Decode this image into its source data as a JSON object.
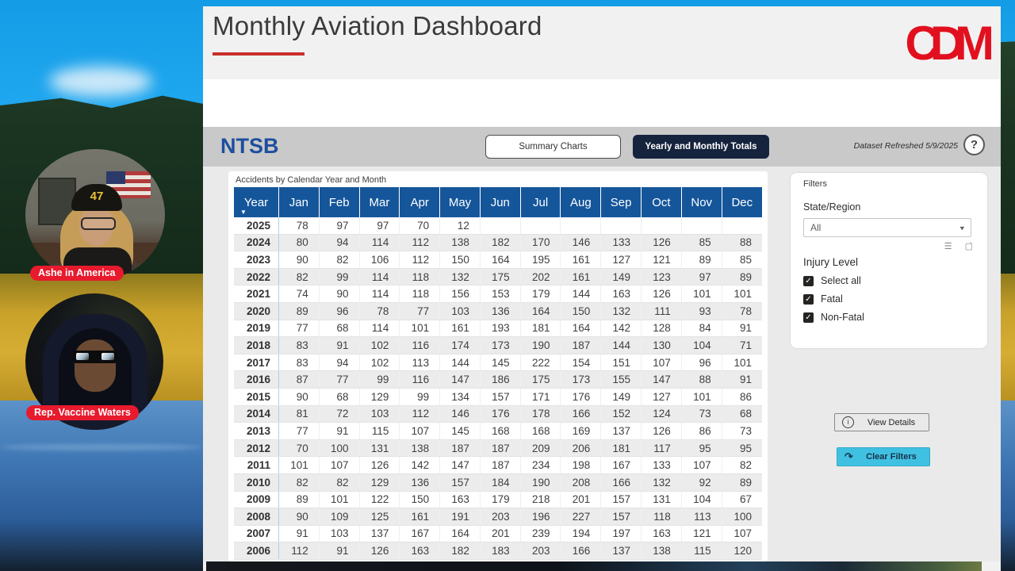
{
  "overlay": {
    "guests": [
      {
        "name": "Ashe in America",
        "cap": "47"
      },
      {
        "name": "Rep. Vaccine Waters"
      }
    ]
  },
  "dashboard": {
    "title": "Monthly Aviation Dashboard",
    "logo_text": "CDM",
    "toolbar": {
      "brand": "NTSB",
      "tab_summary": "Summary Charts",
      "tab_totals": "Yearly and Monthly Totals",
      "refreshed": "Dataset Refreshed 5/9/2025",
      "help": "?"
    },
    "table": {
      "title": "Accidents by Calendar Year and Month",
      "columns": [
        "Year",
        "Jan",
        "Feb",
        "Mar",
        "Apr",
        "May",
        "Jun",
        "Jul",
        "Aug",
        "Sep",
        "Oct",
        "Nov",
        "Dec"
      ],
      "rows": [
        {
          "year": "2025",
          "values": [
            78,
            97,
            97,
            70,
            12,
            null,
            null,
            null,
            null,
            null,
            null,
            null
          ]
        },
        {
          "year": "2024",
          "values": [
            80,
            94,
            114,
            112,
            138,
            182,
            170,
            146,
            133,
            126,
            85,
            88
          ]
        },
        {
          "year": "2023",
          "values": [
            90,
            82,
            106,
            112,
            150,
            164,
            195,
            161,
            127,
            121,
            89,
            85
          ]
        },
        {
          "year": "2022",
          "values": [
            82,
            99,
            114,
            118,
            132,
            175,
            202,
            161,
            149,
            123,
            97,
            89
          ]
        },
        {
          "year": "2021",
          "values": [
            74,
            90,
            114,
            118,
            156,
            153,
            179,
            144,
            163,
            126,
            101,
            101
          ]
        },
        {
          "year": "2020",
          "values": [
            89,
            96,
            78,
            77,
            103,
            136,
            164,
            150,
            132,
            111,
            93,
            78
          ]
        },
        {
          "year": "2019",
          "values": [
            77,
            68,
            114,
            101,
            161,
            193,
            181,
            164,
            142,
            128,
            84,
            91
          ]
        },
        {
          "year": "2018",
          "values": [
            83,
            91,
            102,
            116,
            174,
            173,
            190,
            187,
            144,
            130,
            104,
            71
          ]
        },
        {
          "year": "2017",
          "values": [
            83,
            94,
            102,
            113,
            144,
            145,
            222,
            154,
            151,
            107,
            96,
            101
          ]
        },
        {
          "year": "2016",
          "values": [
            87,
            77,
            99,
            116,
            147,
            186,
            175,
            173,
            155,
            147,
            88,
            91
          ]
        },
        {
          "year": "2015",
          "values": [
            90,
            68,
            129,
            99,
            134,
            157,
            171,
            176,
            149,
            127,
            101,
            86
          ]
        },
        {
          "year": "2014",
          "values": [
            81,
            72,
            103,
            112,
            146,
            176,
            178,
            166,
            152,
            124,
            73,
            68
          ]
        },
        {
          "year": "2013",
          "values": [
            77,
            91,
            115,
            107,
            145,
            168,
            168,
            169,
            137,
            126,
            86,
            73
          ]
        },
        {
          "year": "2012",
          "values": [
            70,
            100,
            131,
            138,
            187,
            187,
            209,
            206,
            181,
            117,
            95,
            95
          ]
        },
        {
          "year": "2011",
          "values": [
            101,
            107,
            126,
            142,
            147,
            187,
            234,
            198,
            167,
            133,
            107,
            82
          ]
        },
        {
          "year": "2010",
          "values": [
            82,
            82,
            129,
            136,
            157,
            184,
            190,
            208,
            166,
            132,
            92,
            89
          ]
        },
        {
          "year": "2009",
          "values": [
            89,
            101,
            122,
            150,
            163,
            179,
            218,
            201,
            157,
            131,
            104,
            67
          ]
        },
        {
          "year": "2008",
          "values": [
            90,
            109,
            125,
            161,
            191,
            203,
            196,
            227,
            157,
            118,
            113,
            100
          ]
        },
        {
          "year": "2007",
          "values": [
            91,
            103,
            137,
            167,
            164,
            201,
            239,
            194,
            197,
            163,
            121,
            107
          ]
        },
        {
          "year": "2006",
          "values": [
            112,
            91,
            126,
            163,
            182,
            183,
            203,
            166,
            137,
            138,
            115,
            120
          ]
        }
      ]
    },
    "filters": {
      "title": "Filters",
      "state_region_label": "State/Region",
      "state_region_value": "All",
      "injury_label": "Injury Level",
      "options": [
        {
          "label": "Select all",
          "checked": true
        },
        {
          "label": "Fatal",
          "checked": true
        },
        {
          "label": "Non-Fatal",
          "checked": true
        }
      ]
    },
    "actions": {
      "view_details": "View Details",
      "clear_filters": "Clear Filters"
    }
  },
  "colors": {
    "table_header_blue": "#15569b",
    "brand_red": "#e2101f",
    "pill_red": "#e81a2d",
    "active_tab_navy": "#16233d",
    "clear_filters_cyan": "#41c1e1",
    "underline_red": "#c9302c"
  }
}
